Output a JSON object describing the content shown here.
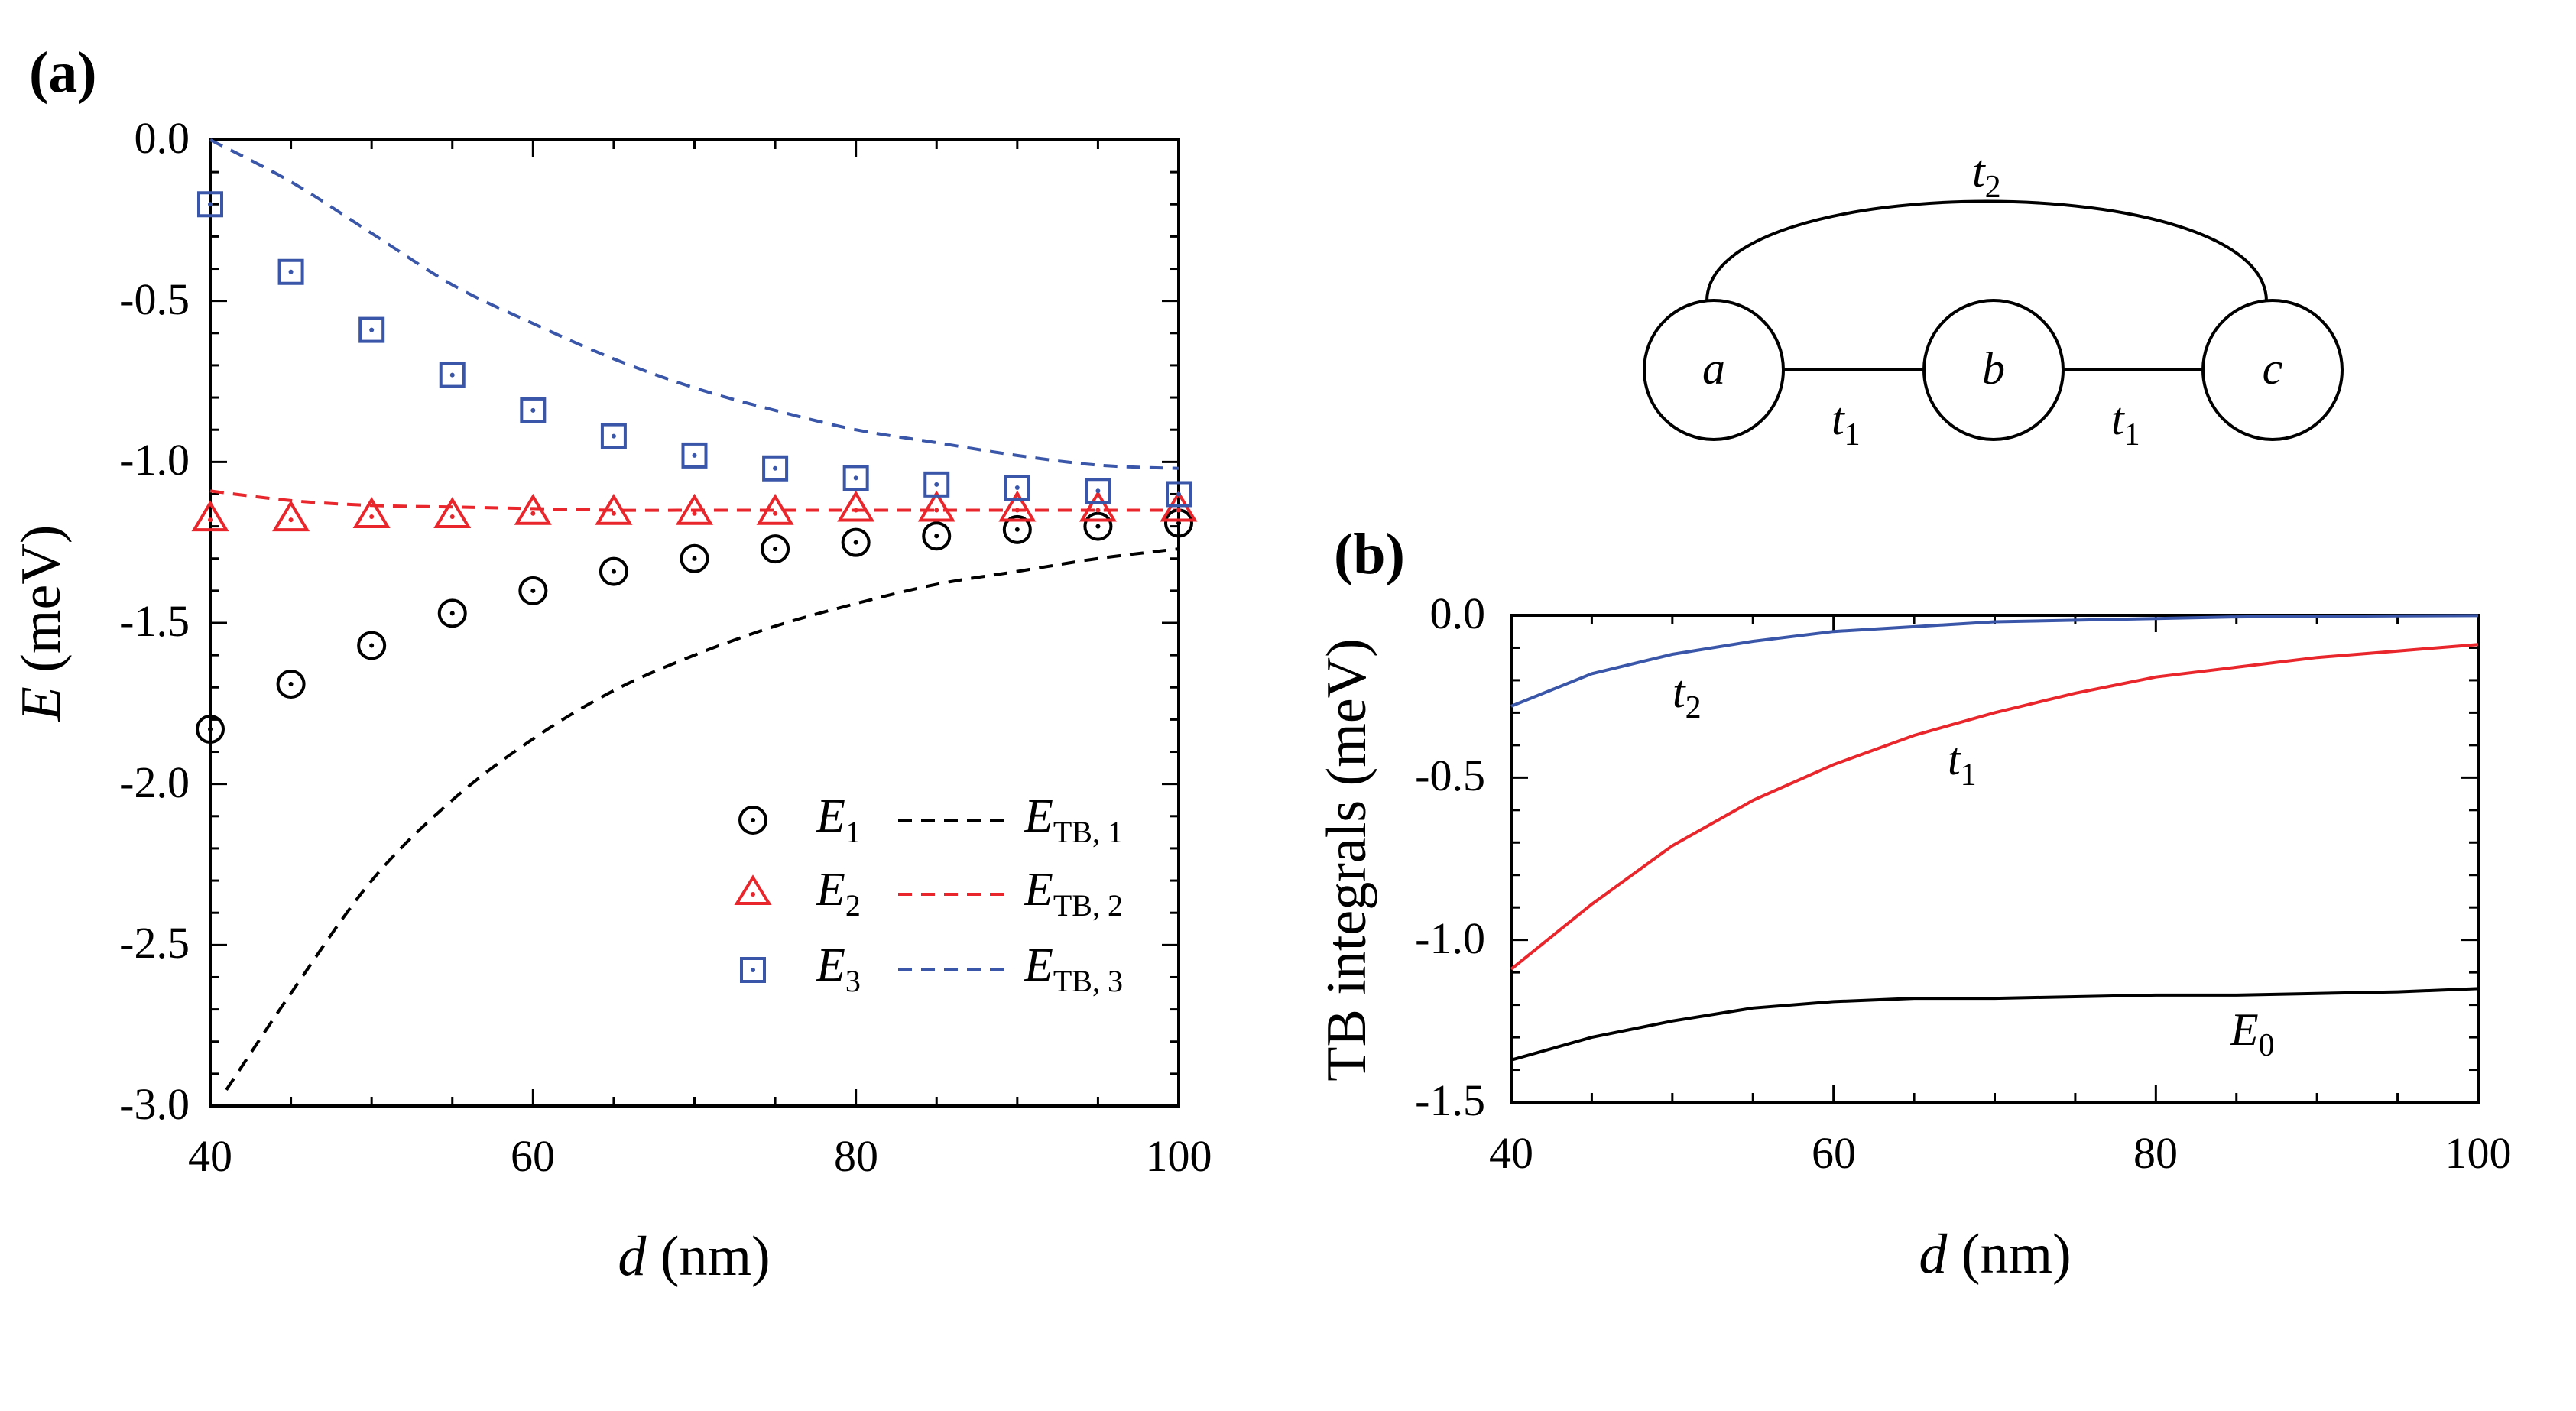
{
  "panels": [
    {
      "label": "(a)",
      "xlabel_var": "d",
      "xlabel_unit": " (nm)",
      "ylabel_var": "E",
      "ylabel_unit": " (meV)"
    },
    {
      "label": "(b)",
      "xlabel_var": "d",
      "xlabel_unit": " (nm)",
      "ylabel": "TB integrals (meV)"
    }
  ],
  "legend": [
    {
      "sym": "E",
      "sub": "1",
      "line_sym": "E",
      "line_sub": "TB, 1"
    },
    {
      "sym": "E",
      "sub": "2",
      "line_sym": "E",
      "line_sub": "TB, 2"
    },
    {
      "sym": "E",
      "sub": "3",
      "line_sym": "E",
      "line_sub": "TB, 3"
    }
  ],
  "diagram": {
    "nodes": [
      "a",
      "b",
      "c"
    ],
    "hop_nn": {
      "sym": "t",
      "sub": "1"
    },
    "hop_nnn": {
      "sym": "t",
      "sub": "2"
    }
  },
  "curve_labels": [
    {
      "sym": "t",
      "sub": "2"
    },
    {
      "sym": "t",
      "sub": "1"
    },
    {
      "sym": "E",
      "sub": "0"
    }
  ],
  "colors": {
    "black": "#000000",
    "red": "#e8262b",
    "blue": "#3a56a8"
  },
  "chart_data": [
    {
      "type": "scatter",
      "xlim": [
        40,
        100
      ],
      "ylim": [
        -3.0,
        0.0
      ],
      "xticks": [
        "40",
        "60",
        "80",
        "100"
      ],
      "yticks": [
        "0.0",
        "-0.5",
        "-1.0",
        "-1.5",
        "-2.0",
        "-2.5",
        "-3.0"
      ],
      "grid": false,
      "legend_position": "bottom-right",
      "x": [
        40,
        45,
        50,
        55,
        60,
        65,
        70,
        75,
        80,
        85,
        90,
        95,
        100
      ],
      "series": [
        {
          "name": "E1",
          "kind": "points",
          "marker": "circle-dot",
          "color": "#000000",
          "values": [
            -1.83,
            -1.69,
            -1.57,
            -1.47,
            -1.4,
            -1.34,
            -1.3,
            -1.27,
            -1.25,
            -1.23,
            -1.21,
            -1.2,
            -1.19
          ]
        },
        {
          "name": "E2",
          "kind": "points",
          "marker": "triangle-dot",
          "color": "#e8262b",
          "values": [
            -1.18,
            -1.18,
            -1.17,
            -1.17,
            -1.16,
            -1.16,
            -1.16,
            -1.16,
            -1.15,
            -1.15,
            -1.15,
            -1.15,
            -1.15
          ]
        },
        {
          "name": "E3",
          "kind": "points",
          "marker": "square-dot",
          "color": "#3a56a8",
          "values": [
            -0.2,
            -0.41,
            -0.59,
            -0.73,
            -0.84,
            -0.92,
            -0.98,
            -1.02,
            -1.05,
            -1.07,
            -1.08,
            -1.09,
            -1.1
          ]
        },
        {
          "name": "ETB,1",
          "kind": "dashed-line",
          "color": "#000000",
          "x": [
            41,
            45,
            50,
            55,
            60,
            65,
            70,
            75,
            80,
            85,
            90,
            95,
            100
          ],
          "values": [
            -2.95,
            -2.65,
            -2.3,
            -2.05,
            -1.86,
            -1.71,
            -1.6,
            -1.51,
            -1.44,
            -1.38,
            -1.34,
            -1.3,
            -1.27
          ]
        },
        {
          "name": "ETB,2",
          "kind": "dashed-line",
          "color": "#e8262b",
          "values": [
            -1.09,
            -1.12,
            -1.135,
            -1.14,
            -1.145,
            -1.15,
            -1.15,
            -1.15,
            -1.15,
            -1.15,
            -1.15,
            -1.15,
            -1.15
          ]
        },
        {
          "name": "ETB,3",
          "kind": "dashed-line",
          "color": "#3a56a8",
          "values": [
            0.0,
            -0.13,
            -0.29,
            -0.45,
            -0.57,
            -0.68,
            -0.77,
            -0.84,
            -0.9,
            -0.94,
            -0.98,
            -1.01,
            -1.02
          ]
        }
      ]
    },
    {
      "type": "line",
      "xlim": [
        40,
        100
      ],
      "ylim": [
        -1.5,
        0.0
      ],
      "xticks": [
        "40",
        "60",
        "80",
        "100"
      ],
      "yticks": [
        "0.0",
        "-0.5",
        "-1.0",
        "-1.5"
      ],
      "grid": false,
      "x": [
        40,
        45,
        50,
        55,
        60,
        65,
        70,
        75,
        80,
        85,
        90,
        95,
        100
      ],
      "series": [
        {
          "name": "t2",
          "color": "#3a56a8",
          "values": [
            -0.28,
            -0.18,
            -0.12,
            -0.08,
            -0.05,
            -0.035,
            -0.02,
            -0.015,
            -0.01,
            -0.005,
            -0.003,
            -0.002,
            -0.001
          ]
        },
        {
          "name": "t1",
          "color": "#e8262b",
          "values": [
            -1.09,
            -0.89,
            -0.71,
            -0.57,
            -0.46,
            -0.37,
            -0.3,
            -0.24,
            -0.19,
            -0.16,
            -0.13,
            -0.11,
            -0.09
          ]
        },
        {
          "name": "E0",
          "color": "#000000",
          "values": [
            -1.37,
            -1.3,
            -1.25,
            -1.21,
            -1.19,
            -1.18,
            -1.18,
            -1.175,
            -1.17,
            -1.17,
            -1.165,
            -1.16,
            -1.15
          ]
        }
      ]
    }
  ]
}
